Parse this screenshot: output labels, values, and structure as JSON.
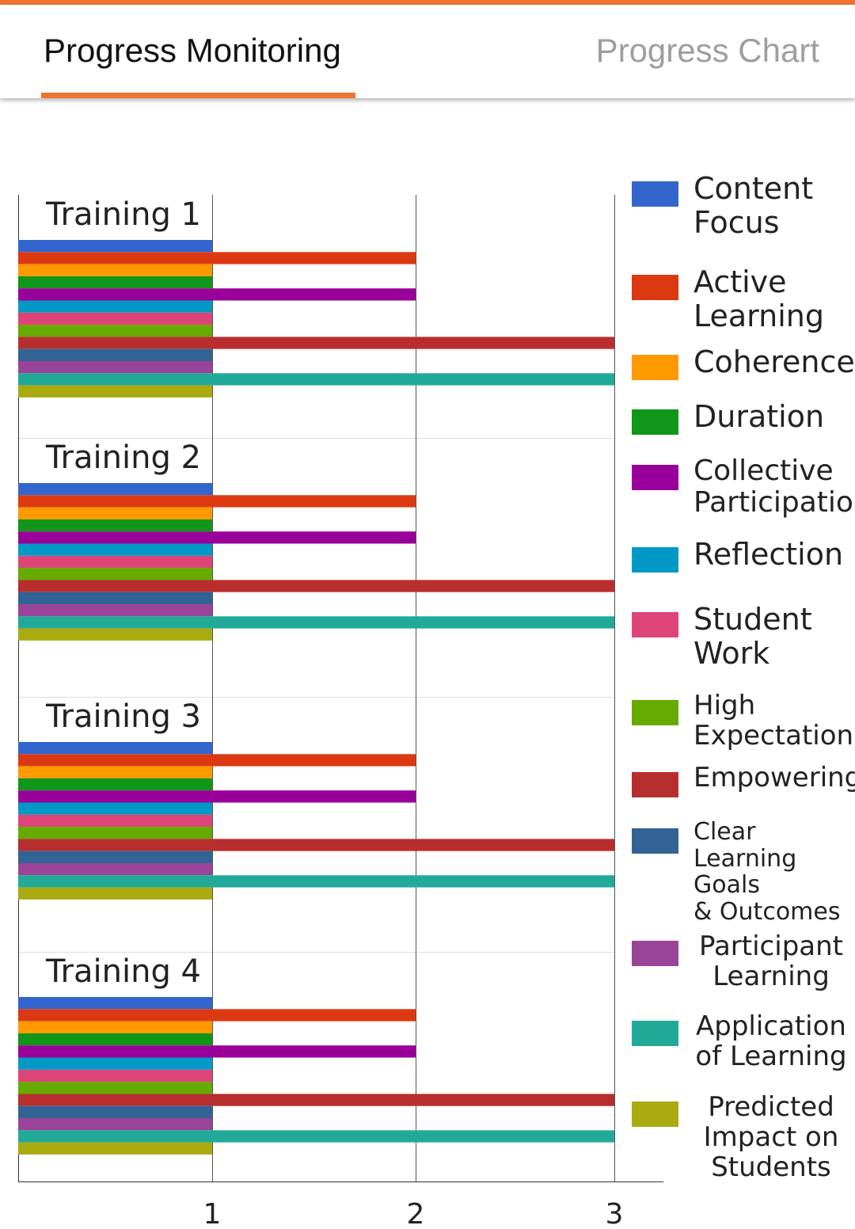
{
  "header": {
    "tabs": [
      {
        "label": "Progress Monitoring",
        "active": true
      },
      {
        "label": "Progress Chart",
        "active": false
      }
    ],
    "accent_color": "#ee7230"
  },
  "chart_data": {
    "type": "bar",
    "orientation": "horizontal",
    "title": "",
    "xlabel": "",
    "ylabel": "",
    "xlim": [
      0,
      3.2
    ],
    "x_ticks": [
      "1",
      "2",
      "3"
    ],
    "grid": true,
    "legend_position": "right",
    "categories": [
      "Training 1",
      "Training 2",
      "Training 3",
      "Training 4"
    ],
    "series": [
      {
        "name": "Content Focus",
        "color": "#3366cc",
        "values": [
          1,
          1,
          1,
          1
        ]
      },
      {
        "name": "Active Learning",
        "color": "#dc3912",
        "values": [
          2,
          2,
          2,
          2
        ]
      },
      {
        "name": "Coherence",
        "color": "#ff9900",
        "values": [
          1,
          1,
          1,
          1
        ]
      },
      {
        "name": "Duration",
        "color": "#109618",
        "values": [
          1,
          1,
          1,
          1
        ]
      },
      {
        "name": "Collective Participation",
        "color": "#990099",
        "values": [
          2,
          2,
          2,
          2
        ]
      },
      {
        "name": "Reflection",
        "color": "#0099c6",
        "values": [
          1,
          1,
          1,
          1
        ]
      },
      {
        "name": "Student Work",
        "color": "#dd4477",
        "values": [
          1,
          1,
          1,
          1
        ]
      },
      {
        "name": "High Expectations",
        "color": "#66aa00",
        "values": [
          1,
          1,
          1,
          1
        ]
      },
      {
        "name": "Empowering",
        "color": "#b82e2e",
        "values": [
          3,
          3,
          3,
          3
        ]
      },
      {
        "name": "Clear Learning Goals & Outcomes",
        "color": "#316395",
        "values": [
          1,
          1,
          1,
          1
        ]
      },
      {
        "name": "Participant Learning",
        "color": "#994499",
        "values": [
          1,
          1,
          1,
          1
        ]
      },
      {
        "name": "Application of Learning",
        "color": "#22aa99",
        "values": [
          3,
          3,
          3,
          3
        ]
      },
      {
        "name": "Predicted Impact on Students",
        "color": "#aaaa11",
        "values": [
          1,
          1,
          1,
          1
        ]
      }
    ]
  }
}
